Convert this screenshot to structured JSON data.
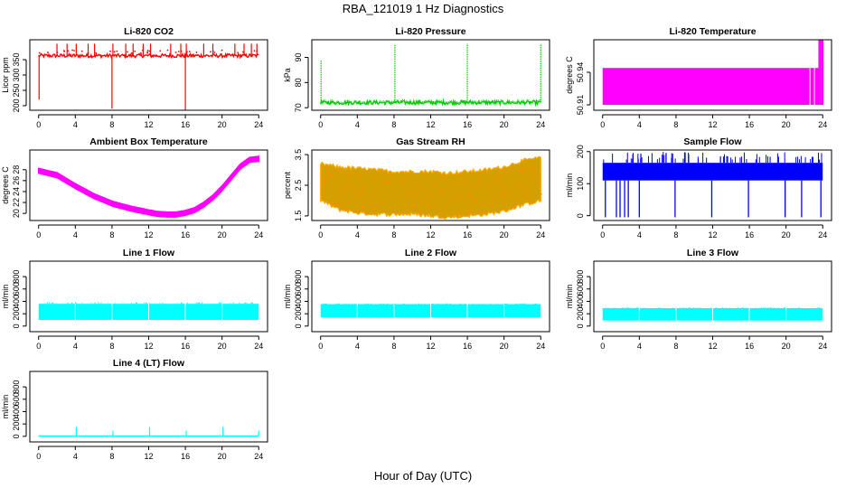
{
  "figure": {
    "title": "RBA_121019  1 Hz Diagnostics",
    "xlabel": "Hour of Day (UTC)"
  },
  "chart_data": [
    {
      "type": "line",
      "title": "Li-820 CO2",
      "ylabel": "Licor ppm",
      "color": "#ff0000",
      "xlim": [
        0,
        24
      ],
      "xticks": [
        "0",
        "4",
        "8",
        "12",
        "16",
        "20",
        "24"
      ],
      "ylim": [
        185,
        415
      ],
      "yticks": [
        200,
        250,
        300,
        350
      ],
      "ytick_labels": [
        "200",
        "250",
        "300",
        "350"
      ],
      "baseline": 363,
      "noise": 6,
      "spikes": [
        {
          "x": 2,
          "y": 402
        },
        {
          "x": 3.1,
          "y": 402
        },
        {
          "x": 4.1,
          "y": 402
        },
        {
          "x": 5.4,
          "y": 402
        },
        {
          "x": 6.1,
          "y": 402
        },
        {
          "x": 8.1,
          "y": 402
        },
        {
          "x": 8.0,
          "y": 190
        },
        {
          "x": 9.5,
          "y": 402
        },
        {
          "x": 10.3,
          "y": 402
        },
        {
          "x": 11.4,
          "y": 402
        },
        {
          "x": 12.2,
          "y": 402
        },
        {
          "x": 14.4,
          "y": 402
        },
        {
          "x": 15.5,
          "y": 402
        },
        {
          "x": 16.1,
          "y": 402
        },
        {
          "x": 16.0,
          "y": 186
        },
        {
          "x": 18.0,
          "y": 402
        },
        {
          "x": 19.0,
          "y": 402
        },
        {
          "x": 21.4,
          "y": 402
        },
        {
          "x": 22.4,
          "y": 402
        },
        {
          "x": 23.2,
          "y": 402
        },
        {
          "x": 23.8,
          "y": 402
        },
        {
          "x": 0.05,
          "y": 220
        }
      ]
    },
    {
      "type": "line",
      "title": "Li-820 Pressure",
      "ylabel": "kPa",
      "color": "#00cc00",
      "xlim": [
        0,
        24
      ],
      "xticks": [
        "0",
        "4",
        "8",
        "12",
        "16",
        "20",
        "24"
      ],
      "ylim": [
        69,
        97
      ],
      "yticks": [
        70,
        80,
        90
      ],
      "ytick_labels": [
        "70",
        "80",
        "90"
      ],
      "baseline": 72,
      "noise": 0.7,
      "spikes": [
        {
          "x": 0.05,
          "y": 89
        },
        {
          "x": 8.1,
          "y": 95
        },
        {
          "x": 16.0,
          "y": 95.5
        },
        {
          "x": 24.0,
          "y": 95
        }
      ]
    },
    {
      "type": "band",
      "title": "Li-820 Temperature",
      "ylabel": "degrees C",
      "color": "#ff00ff",
      "xlim": [
        0,
        24
      ],
      "xticks": [
        "0",
        "4",
        "8",
        "12",
        "16",
        "20",
        "24"
      ],
      "ylim": [
        50.905,
        50.97
      ],
      "yticks": [
        50.91,
        50.94
      ],
      "ytick_labels": [
        "50.91",
        "50.94"
      ],
      "band": {
        "x": [
          0,
          23.6
        ],
        "y": [
          50.91,
          50.944
        ]
      },
      "spike_x": [
        23.6,
        24
      ],
      "spike_top": 50.97
    },
    {
      "type": "line",
      "title": "Ambient Box Temperature",
      "ylabel": "degrees C",
      "color": "#ff00ff",
      "xlim": [
        0,
        24
      ],
      "xticks": [
        "0",
        "4",
        "8",
        "12",
        "16",
        "20",
        "24"
      ],
      "ylim": [
        18.7,
        31.6
      ],
      "yticks": [
        20,
        22,
        24,
        26,
        28
      ],
      "ytick_labels": [
        "20",
        "22",
        "24",
        "26",
        "28"
      ],
      "x": [
        0,
        2,
        4,
        6,
        8,
        10,
        12,
        13,
        14,
        15,
        16,
        17,
        18,
        19,
        20,
        21,
        22,
        23,
        24
      ],
      "y": [
        27.8,
        27.0,
        25.0,
        23.2,
        21.8,
        20.9,
        20.2,
        19.9,
        19.8,
        19.8,
        20.1,
        20.6,
        21.6,
        22.9,
        24.6,
        26.6,
        28.6,
        29.8,
        30.0
      ],
      "band": 0.45
    },
    {
      "type": "band",
      "title": "Gas Stream RH",
      "ylabel": "percent",
      "color": "#ffaa00",
      "xlim": [
        0,
        24
      ],
      "xticks": [
        "0",
        "4",
        "8",
        "12",
        "16",
        "20",
        "24"
      ],
      "ylim": [
        1.35,
        3.65
      ],
      "yticks": [
        1.5,
        2.5,
        3.5
      ],
      "ytick_labels": [
        "1.5",
        "2.5",
        "3.5"
      ],
      "x": [
        0,
        2,
        4,
        6,
        8,
        10,
        12,
        14,
        16,
        18,
        20,
        22,
        24
      ],
      "upper": [
        3.2,
        3.1,
        3.05,
        3.0,
        2.95,
        2.95,
        2.95,
        2.9,
        2.95,
        3.0,
        3.1,
        3.3,
        3.4
      ],
      "lower": [
        2.0,
        1.7,
        1.6,
        1.55,
        1.55,
        1.55,
        1.5,
        1.45,
        1.5,
        1.55,
        1.65,
        1.85,
        2.0
      ]
    },
    {
      "type": "line",
      "title": "Sample Flow",
      "ylabel": "ml/min",
      "color": "#0000ff",
      "xlim": [
        0,
        24
      ],
      "xticks": [
        "0",
        "4",
        "8",
        "12",
        "16",
        "20",
        "24"
      ],
      "ylim": [
        -15,
        205
      ],
      "yticks": [
        0,
        100,
        200
      ],
      "ytick_labels": [
        "0",
        "100",
        "200"
      ],
      "band": [
        110,
        165
      ],
      "spikes_up": 175,
      "dips": [
        0.3,
        1.5,
        1.9,
        2.4,
        2.8,
        4.0,
        7.9,
        11.9,
        15.9,
        19.9,
        21.7,
        23.8
      ]
    },
    {
      "type": "band",
      "title": "Line 1 Flow",
      "ylabel": "ml/min",
      "color": "#00ffff",
      "xlim": [
        0,
        24
      ],
      "xticks": [
        "0",
        "4",
        "8",
        "12",
        "16",
        "20",
        "24"
      ],
      "ylim": [
        -90,
        1050
      ],
      "yticks": [
        0,
        200,
        400,
        600,
        800
      ],
      "ytick_labels": [
        "0",
        "200",
        "400",
        "600",
        "800"
      ],
      "band_range": [
        100,
        360
      ],
      "top_wiggle": 25
    },
    {
      "type": "band",
      "title": "Line 2 Flow",
      "ylabel": "ml/min",
      "color": "#00ffff",
      "xlim": [
        0,
        24
      ],
      "xticks": [
        "0",
        "4",
        "8",
        "12",
        "16",
        "20",
        "24"
      ],
      "ylim": [
        -90,
        1050
      ],
      "yticks": [
        0,
        200,
        400,
        600,
        800
      ],
      "ytick_labels": [
        "0",
        "200",
        "400",
        "600",
        "800"
      ],
      "band_range": [
        140,
        355
      ],
      "top_wiggle": 12
    },
    {
      "type": "band",
      "title": "Line 3 Flow",
      "ylabel": "ml/min",
      "color": "#00ffff",
      "xlim": [
        0,
        24
      ],
      "xticks": [
        "0",
        "4",
        "8",
        "12",
        "16",
        "20",
        "24"
      ],
      "ylim": [
        -90,
        1050
      ],
      "yticks": [
        0,
        200,
        400,
        600,
        800
      ],
      "ytick_labels": [
        "0",
        "200",
        "400",
        "600",
        "800"
      ],
      "band_range": [
        90,
        290
      ],
      "top_wiggle": 12
    },
    {
      "type": "line",
      "title": "Line 4 (LT) Flow",
      "ylabel": "ml/min",
      "color": "#00ffff",
      "xlim": [
        0,
        24
      ],
      "xticks": [
        "0",
        "4",
        "8",
        "12",
        "16",
        "20",
        "24"
      ],
      "ylim": [
        -90,
        1050
      ],
      "yticks": [
        0,
        200,
        400,
        600,
        800
      ],
      "ytick_labels": [
        "0",
        "200",
        "400",
        "600",
        "800"
      ],
      "baseline": 5,
      "spikes": [
        {
          "x": 4.1,
          "y": 150
        },
        {
          "x": 8.1,
          "y": 90
        },
        {
          "x": 12.1,
          "y": 150
        },
        {
          "x": 16.1,
          "y": 90
        },
        {
          "x": 20.1,
          "y": 150
        },
        {
          "x": 24.0,
          "y": 90
        }
      ]
    }
  ]
}
